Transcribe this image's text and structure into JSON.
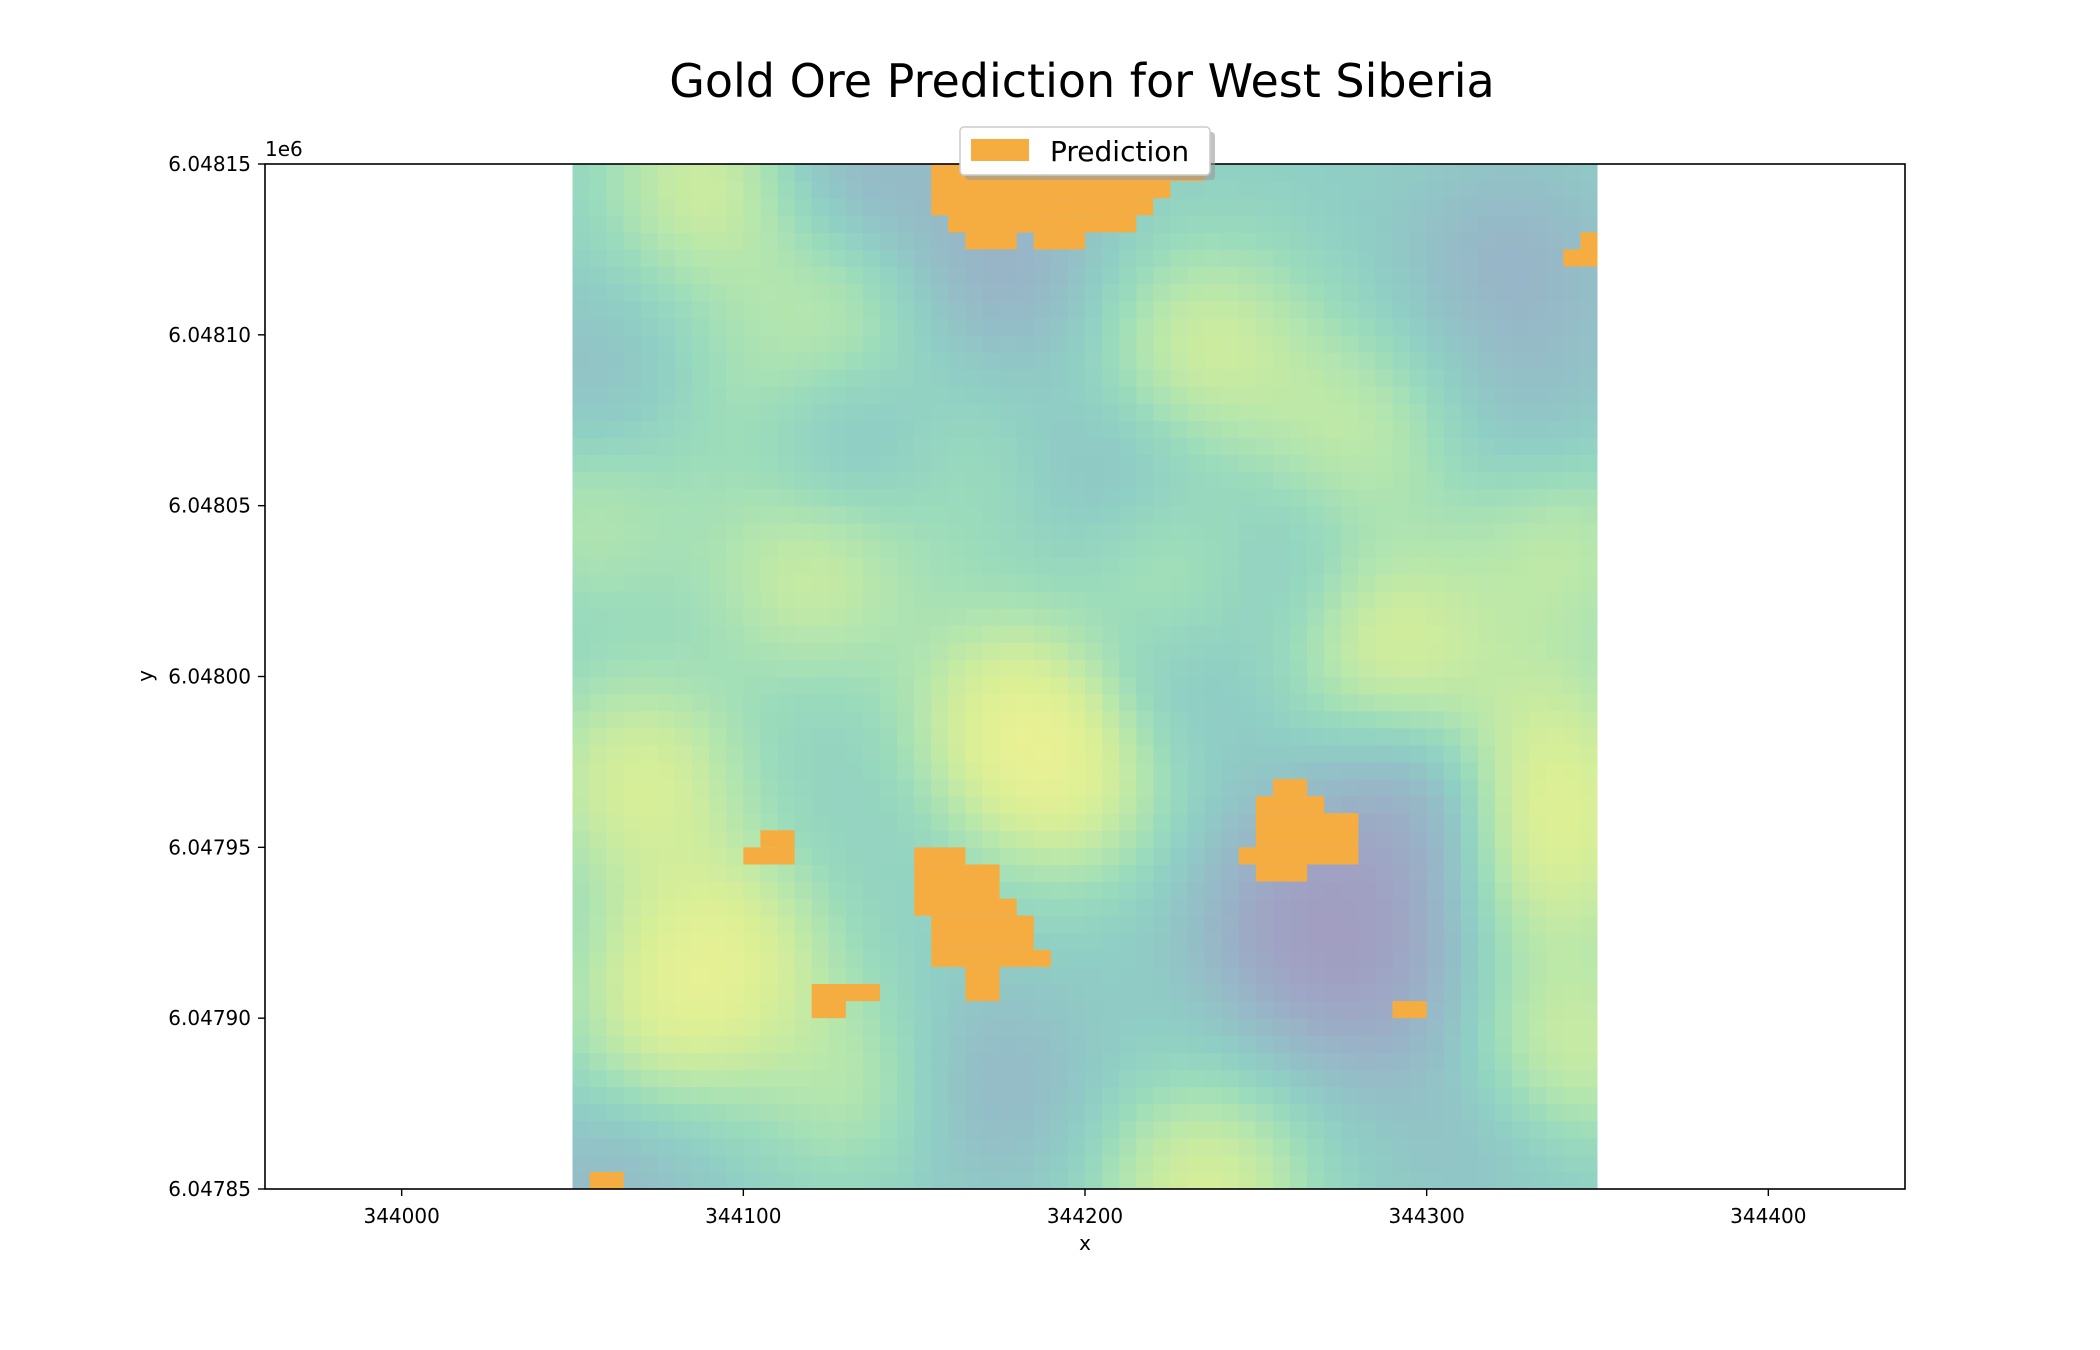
{
  "chart_data": {
    "type": "heatmap",
    "title": "Gold Ore Prediction for West Siberia",
    "xlabel": "x",
    "ylabel": "y",
    "y_offset_label": "1e6",
    "xlim": [
      343960,
      344440
    ],
    "ylim": [
      6.04785,
      6.04815
    ],
    "x_ticks": [
      344000,
      344100,
      344200,
      344300,
      344400
    ],
    "x_tick_labels": [
      "344000",
      "344100",
      "344200",
      "344300",
      "344400"
    ],
    "y_ticks": [
      6.04785,
      6.0479,
      6.04795,
      6.048,
      6.04805,
      6.0481,
      6.04815
    ],
    "y_tick_labels": [
      "6.04785",
      "6.04790",
      "6.04795",
      "6.04800",
      "6.04805",
      "6.04810",
      "6.04815"
    ],
    "grid": false,
    "legend": {
      "placement": "top-center",
      "entries": [
        {
          "name": "Prediction",
          "color": "#f5ad42"
        }
      ]
    },
    "background_raster": {
      "extent_x": [
        344050,
        344350
      ],
      "extent_y": [
        6.04785,
        6.04815
      ],
      "colormap": "viridis",
      "alpha": 0.5,
      "blobs": [
        {
          "x": 344090,
          "y": 6.048145,
          "v": 0.9
        },
        {
          "x": 344130,
          "y": 6.04815,
          "v": -0.5
        },
        {
          "x": 344175,
          "y": 6.04812,
          "v": -0.6
        },
        {
          "x": 344130,
          "y": 6.048105,
          "v": 0.6
        },
        {
          "x": 344100,
          "y": 6.04808,
          "v": 0.4
        },
        {
          "x": 344060,
          "y": 6.04808,
          "v": -0.4
        },
        {
          "x": 344130,
          "y": 6.04807,
          "v": -0.5
        },
        {
          "x": 344225,
          "y": 6.04809,
          "v": 0.4
        },
        {
          "x": 344240,
          "y": 6.0481,
          "v": 0.55
        },
        {
          "x": 344280,
          "y": 6.04807,
          "v": 0.65
        },
        {
          "x": 344325,
          "y": 6.04812,
          "v": -0.5
        },
        {
          "x": 344330,
          "y": 6.04807,
          "v": -0.3
        },
        {
          "x": 344055,
          "y": 6.04805,
          "v": 0.6
        },
        {
          "x": 344120,
          "y": 6.04803,
          "v": 0.8
        },
        {
          "x": 344165,
          "y": 6.04806,
          "v": 0.35
        },
        {
          "x": 344225,
          "y": 6.04803,
          "v": 0.7
        },
        {
          "x": 344210,
          "y": 6.04806,
          "v": -0.45
        },
        {
          "x": 344260,
          "y": 6.04803,
          "v": -0.4
        },
        {
          "x": 344340,
          "y": 6.04804,
          "v": 0.7
        },
        {
          "x": 344180,
          "y": 6.04799,
          "v": 1.0
        },
        {
          "x": 344195,
          "y": 6.04797,
          "v": 0.95
        },
        {
          "x": 344288,
          "y": 6.04801,
          "v": 1.0
        },
        {
          "x": 344215,
          "y": 6.048,
          "v": -0.45
        },
        {
          "x": 344070,
          "y": 6.04797,
          "v": 1.0
        },
        {
          "x": 344335,
          "y": 6.04795,
          "v": 1.0
        },
        {
          "x": 344335,
          "y": 6.04798,
          "v": 0.7
        },
        {
          "x": 344300,
          "y": 6.04796,
          "v": -0.75
        },
        {
          "x": 344265,
          "y": 6.04793,
          "v": -1.0
        },
        {
          "x": 344285,
          "y": 6.04791,
          "v": -0.6
        },
        {
          "x": 344095,
          "y": 6.04792,
          "v": 1.0
        },
        {
          "x": 344075,
          "y": 6.0479,
          "v": 0.7
        },
        {
          "x": 344135,
          "y": 6.04788,
          "v": 0.6
        },
        {
          "x": 344170,
          "y": 6.04788,
          "v": -0.5
        },
        {
          "x": 344235,
          "y": 6.04785,
          "v": 1.0
        },
        {
          "x": 344340,
          "y": 6.04789,
          "v": 0.9
        },
        {
          "x": 344060,
          "y": 6.04785,
          "v": -0.4
        },
        {
          "x": 344320,
          "y": 6.04787,
          "v": -0.35
        }
      ]
    },
    "prediction_cells": {
      "cell_size_x": 5,
      "cell_size_y": 5e-06,
      "rects": [
        {
          "x": [
            344160,
            344190
          ],
          "y": [
            6.04814,
            6.04815
          ]
        },
        {
          "x": [
            344160,
            344185
          ],
          "y": [
            6.04813,
            6.04814
          ]
        },
        {
          "x": [
            344165,
            344180
          ],
          "y": [
            6.04813,
            6.04813
          ]
        },
        {
          "x": [
            344190,
            344195
          ],
          "y": [
            6.04813,
            6.04813
          ]
        },
        {
          "x": [
            344155,
            344235
          ],
          "y": [
            6.048145,
            6.04815
          ]
        },
        {
          "x": [
            344155,
            344225
          ],
          "y": [
            6.04814,
            6.048145
          ]
        },
        {
          "x": [
            344155,
            344220
          ],
          "y": [
            6.048135,
            6.04814
          ]
        },
        {
          "x": [
            344160,
            344215
          ],
          "y": [
            6.04813,
            6.048135
          ]
        },
        {
          "x": [
            344185,
            344200
          ],
          "y": [
            6.048125,
            6.04813
          ]
        },
        {
          "x": [
            344345,
            344350
          ],
          "y": [
            6.048125,
            6.04813
          ]
        },
        {
          "x": [
            344340,
            344350
          ],
          "y": [
            6.04812,
            6.048125
          ]
        },
        {
          "x": [
            344255,
            344265
          ],
          "y": [
            6.047965,
            6.04797
          ]
        },
        {
          "x": [
            344250,
            344270
          ],
          "y": [
            6.04796,
            6.047965
          ]
        },
        {
          "x": [
            344250,
            344280
          ],
          "y": [
            6.04795,
            6.04796
          ]
        },
        {
          "x": [
            344245,
            344280
          ],
          "y": [
            6.047945,
            6.04795
          ]
        },
        {
          "x": [
            344250,
            344265
          ],
          "y": [
            6.04794,
            6.047945
          ]
        },
        {
          "x": [
            344105,
            344115
          ],
          "y": [
            6.04795,
            6.047955
          ]
        },
        {
          "x": [
            344100,
            344115
          ],
          "y": [
            6.047945,
            6.04795
          ]
        },
        {
          "x": [
            344150,
            344165
          ],
          "y": [
            6.047945,
            6.04795
          ]
        },
        {
          "x": [
            344150,
            344175
          ],
          "y": [
            6.047935,
            6.047945
          ]
        },
        {
          "x": [
            344150,
            344180
          ],
          "y": [
            6.04793,
            6.047935
          ]
        },
        {
          "x": [
            344155,
            344185
          ],
          "y": [
            6.04792,
            6.04793
          ]
        },
        {
          "x": [
            344155,
            344190
          ],
          "y": [
            6.047915,
            6.04792
          ]
        },
        {
          "x": [
            344165,
            344175
          ],
          "y": [
            6.047905,
            6.047915
          ]
        },
        {
          "x": [
            344120,
            344140
          ],
          "y": [
            6.047905,
            6.04791
          ]
        },
        {
          "x": [
            344120,
            344130
          ],
          "y": [
            6.0479,
            6.047905
          ]
        },
        {
          "x": [
            344290,
            344300
          ],
          "y": [
            6.0479,
            6.047905
          ]
        },
        {
          "x": [
            344055,
            344065
          ],
          "y": [
            6.04785,
            6.047855
          ]
        }
      ]
    }
  }
}
